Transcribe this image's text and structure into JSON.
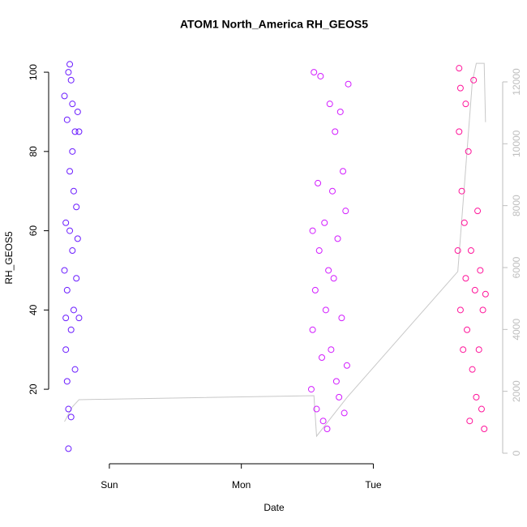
{
  "chart_data": {
    "type": "scatter",
    "title": "ATOM1 North_America RH_GEOS5",
    "xlabel": "Date",
    "ylabel": "RH_GEOS5",
    "xlim": [
      0.54,
      3.98
    ],
    "xticks": [
      {
        "value": 1,
        "label": "Sun"
      },
      {
        "value": 2,
        "label": "Mon"
      },
      {
        "value": 3,
        "label": "Tue"
      }
    ],
    "ylim": [
      1.2,
      103.9
    ],
    "yticks": [
      20,
      40,
      60,
      80,
      100
    ],
    "y2lim": [
      -341,
      12812
    ],
    "y2ticks": [
      0,
      2000,
      4000,
      6000,
      8000,
      10000,
      12000
    ],
    "y2color": "#bebebe",
    "series": [
      {
        "color": "#6b1cff",
        "x": [
          0.66,
          0.66,
          0.67,
          0.67,
          0.67,
          0.68,
          0.68,
          0.68,
          0.69,
          0.69,
          0.69,
          0.7,
          0.7,
          0.7,
          0.71,
          0.71,
          0.71,
          0.72,
          0.72,
          0.72,
          0.73,
          0.73,
          0.74,
          0.74,
          0.75,
          0.75,
          0.76,
          0.76,
          0.77,
          0.77
        ],
        "values": [
          50,
          94,
          30,
          62,
          38,
          22,
          88,
          45,
          5,
          100,
          15,
          75,
          60,
          102,
          98,
          13,
          35,
          80,
          55,
          92,
          70,
          40,
          85,
          25,
          66,
          48,
          90,
          58,
          38,
          85
        ]
      },
      {
        "color": "#d21cff",
        "x": [
          2.53,
          2.54,
          2.54,
          2.55,
          2.56,
          2.57,
          2.58,
          2.59,
          2.6,
          2.61,
          2.62,
          2.63,
          2.64,
          2.65,
          2.66,
          2.67,
          2.68,
          2.69,
          2.7,
          2.71,
          2.72,
          2.73,
          2.74,
          2.75,
          2.76,
          2.77,
          2.78,
          2.79,
          2.8,
          2.81
        ],
        "values": [
          20,
          60,
          35,
          100,
          45,
          15,
          72,
          55,
          99,
          28,
          12,
          62,
          40,
          10,
          50,
          92,
          30,
          70,
          48,
          85,
          22,
          58,
          18,
          90,
          38,
          75,
          14,
          65,
          26,
          97
        ]
      },
      {
        "color": "#ff149a",
        "x": [
          3.64,
          3.65,
          3.65,
          3.66,
          3.66,
          3.67,
          3.68,
          3.69,
          3.7,
          3.7,
          3.71,
          3.72,
          3.73,
          3.74,
          3.75,
          3.76,
          3.77,
          3.78,
          3.79,
          3.8,
          3.81,
          3.82,
          3.83,
          3.84,
          3.85
        ],
        "values": [
          55,
          101,
          85,
          40,
          96,
          70,
          30,
          62,
          92,
          48,
          35,
          80,
          12,
          55,
          25,
          98,
          45,
          18,
          65,
          30,
          50,
          15,
          40,
          10,
          44
        ]
      },
      {
        "type": "line",
        "axis": "y2",
        "color": "#c8c8c8",
        "x": [
          0.66,
          0.72,
          0.77,
          2.55,
          2.57,
          2.8,
          3.64,
          3.75,
          3.78,
          3.8,
          3.84,
          3.85
        ],
        "values": [
          1020,
          1500,
          1730,
          1860,
          550,
          1800,
          5870,
          12000,
          12600,
          12600,
          12600,
          10700
        ]
      }
    ]
  }
}
